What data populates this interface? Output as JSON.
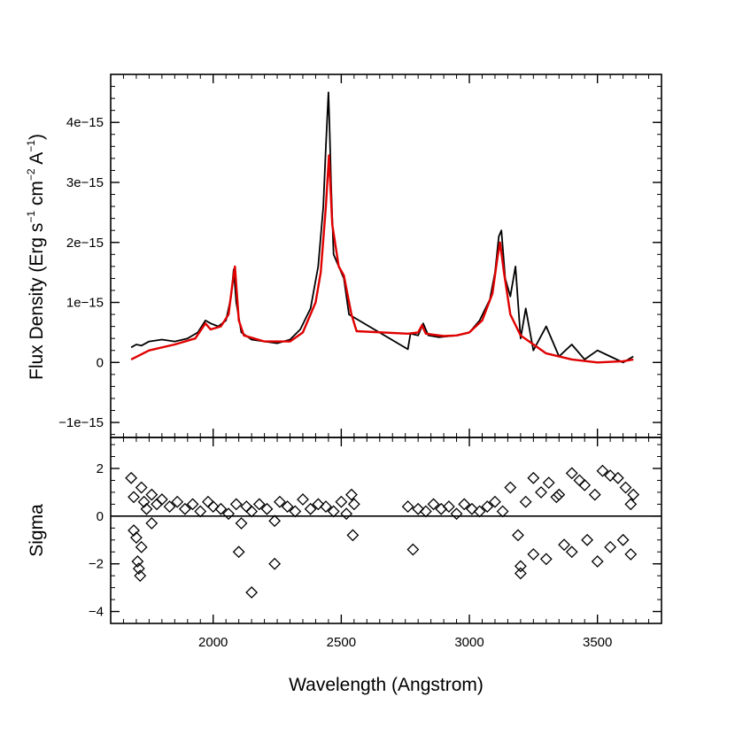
{
  "chart_data": [
    {
      "type": "line",
      "panel": "top",
      "ylabel": "Flux Density (Erg s⁻¹ cm⁻² A⁻¹)",
      "ylabel_parts": {
        "pre": "Flux Density (Erg s",
        "exp1": "−1",
        "mid": " cm",
        "exp2": "−2",
        "mid2": " A",
        "exp3": "−1",
        "post": ")"
      },
      "xlim": [
        1600,
        3750
      ],
      "ylim": [
        -1.25e-15,
        4.8e-15
      ],
      "y_ticks": [
        -1e-15,
        0,
        1e-15,
        2e-15,
        3e-15,
        4e-15
      ],
      "y_tick_labels": [
        "−1e−15",
        "0",
        "1e−15",
        "2e−15",
        "3e−15",
        "4e−15"
      ],
      "series": [
        {
          "color": "#000000",
          "x": [
            1680,
            1700,
            1720,
            1750,
            1800,
            1850,
            1900,
            1940,
            1970,
            1990,
            2020,
            2050,
            2070,
            2080,
            2090,
            2110,
            2150,
            2200,
            2250,
            2300,
            2340,
            2380,
            2410,
            2430,
            2440,
            2450,
            2455,
            2460,
            2470,
            2490,
            2510,
            2530,
            2550,
            2760,
            2770,
            2800,
            2820,
            2840,
            2880,
            2950,
            3000,
            3040,
            3080,
            3100,
            3115,
            3125,
            3140,
            3160,
            3180,
            3200,
            3220,
            3250,
            3300,
            3350,
            3400,
            3450,
            3500,
            3550,
            3600,
            3640
          ],
          "values": [
            2.5e-16,
            3e-16,
            2.8e-16,
            3.5e-16,
            3.8e-16,
            3.5e-16,
            4e-16,
            5e-16,
            7e-16,
            6.5e-16,
            6e-16,
            7e-16,
            1.1e-15,
            1.55e-15,
            1e-15,
            5e-16,
            3.8e-16,
            3.5e-16,
            3.2e-16,
            3.8e-16,
            5.5e-16,
            9e-16,
            1.6e-15,
            2.6e-15,
            3.6e-15,
            4.5e-15,
            3.8e-15,
            3e-15,
            1.8e-15,
            1.6e-15,
            1.4e-15,
            8e-16,
            7.5e-16,
            2.2e-16,
            4.8e-16,
            4.5e-16,
            6.5e-16,
            4.5e-16,
            4.2e-16,
            4.5e-16,
            5e-16,
            7e-16,
            1.05e-15,
            1.5e-15,
            2.1e-15,
            2.2e-15,
            1.4e-15,
            1.1e-15,
            1.6e-15,
            4e-16,
            9e-16,
            2e-16,
            6e-16,
            1e-16,
            3e-16,
            5e-17,
            2e-16,
            1e-16,
            0.0,
            1e-16
          ]
        },
        {
          "color": "#e00000",
          "x": [
            1680,
            1750,
            1850,
            1930,
            1970,
            1990,
            2030,
            2060,
            2075,
            2085,
            2100,
            2120,
            2200,
            2300,
            2350,
            2400,
            2420,
            2440,
            2452,
            2465,
            2490,
            2510,
            2540,
            2560,
            2760,
            2800,
            2815,
            2830,
            2900,
            2950,
            3000,
            3050,
            3090,
            3110,
            3120,
            3135,
            3160,
            3200,
            3300,
            3400,
            3500,
            3600,
            3640
          ],
          "values": [
            5e-17,
            2e-16,
            3e-16,
            4e-16,
            6.5e-16,
            5.5e-16,
            6e-16,
            8e-16,
            1.3e-15,
            1.6e-15,
            7e-16,
            4.5e-16,
            3.5e-16,
            3.5e-16,
            5e-16,
            1e-15,
            1.5e-15,
            2.6e-15,
            3.45e-15,
            2.3e-15,
            1.6e-15,
            1.45e-15,
            8e-16,
            5.2e-16,
            4.8e-16,
            5e-16,
            6.2e-16,
            4.8e-16,
            4.4e-16,
            4.5e-16,
            5e-16,
            7e-16,
            1.15e-15,
            1.75e-15,
            2e-15,
            1.5e-15,
            8e-16,
            4.5e-16,
            1.5e-16,
            5e-17,
            0.0,
            2e-17,
            5e-17
          ]
        }
      ]
    },
    {
      "type": "scatter",
      "panel": "bottom",
      "marker": "diamond",
      "xlabel": "Wavelength (Angstrom)",
      "ylabel": "Sigma",
      "xlim": [
        1600,
        3750
      ],
      "ylim": [
        -4.5,
        3.3
      ],
      "x_ticks": [
        2000,
        2500,
        3000,
        3500
      ],
      "x_tick_labels": [
        "2000",
        "2500",
        "3000",
        "3500"
      ],
      "y_ticks": [
        -4,
        -2,
        0,
        2
      ],
      "y_tick_labels": [
        "−4",
        "−2",
        "0",
        "2"
      ],
      "reference_line_y": 0,
      "x": [
        1680,
        1690,
        1700,
        1705,
        1710,
        1715,
        1720,
        1730,
        1740,
        1760,
        1780,
        1800,
        1830,
        1860,
        1890,
        1920,
        1950,
        1980,
        2000,
        2030,
        2060,
        2090,
        2110,
        2130,
        2150,
        2180,
        2210,
        2240,
        2260,
        2290,
        2320,
        2350,
        2380,
        2410,
        2440,
        2470,
        2500,
        2520,
        2540,
        2545,
        2550,
        2760,
        2780,
        2800,
        2830,
        2860,
        2890,
        2920,
        2950,
        2980,
        3010,
        3040,
        3070,
        3100,
        3130,
        3160,
        3190,
        3200,
        3220,
        3250,
        3280,
        3310,
        3340,
        3370,
        3400,
        3430,
        3460,
        3490,
        3520,
        3550,
        3580,
        3610,
        3630,
        3640,
        1690,
        1720,
        1760,
        2100,
        2150,
        2240,
        3200,
        3250,
        3300,
        3350,
        3400,
        3450,
        3500,
        3550,
        3600,
        3630
      ],
      "values": [
        1.6,
        0.8,
        -0.9,
        -1.9,
        -2.2,
        -2.5,
        1.2,
        0.6,
        0.3,
        0.9,
        0.5,
        0.7,
        0.4,
        0.6,
        0.3,
        0.5,
        0.2,
        0.6,
        0.4,
        0.3,
        0.1,
        0.5,
        -0.3,
        0.4,
        0.2,
        0.5,
        0.3,
        -0.2,
        0.6,
        0.4,
        0.2,
        0.7,
        0.3,
        0.5,
        0.4,
        0.2,
        0.6,
        0.1,
        0.9,
        -0.8,
        0.5,
        0.4,
        -1.4,
        0.3,
        0.2,
        0.5,
        0.3,
        0.4,
        0.1,
        0.5,
        0.3,
        0.2,
        0.4,
        0.6,
        0.2,
        1.2,
        -0.8,
        -2.1,
        0.6,
        -1.6,
        1.0,
        1.4,
        0.8,
        -1.2,
        1.8,
        1.5,
        -1.0,
        0.9,
        1.9,
        -1.3,
        1.6,
        1.2,
        -1.6,
        0.9,
        -0.6,
        -1.3,
        -0.3,
        -1.5,
        -3.2,
        -2.0,
        -2.4,
        1.6,
        -1.8,
        0.9,
        -1.5,
        1.3,
        -1.9,
        1.7,
        -1.0,
        0.5
      ]
    }
  ]
}
